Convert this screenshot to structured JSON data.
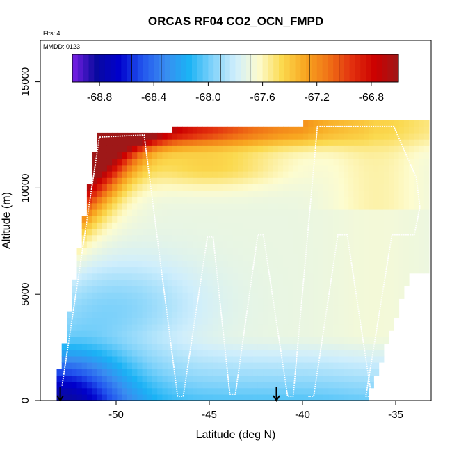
{
  "chart_data": {
    "type": "heatmap",
    "title": "ORCAS RF04 CO2_OCN_FMPD",
    "xlabel": "Latitude (deg N)",
    "ylabel": "Altitude (m)",
    "flights_note": "Flts: 4",
    "date_note": "MMDD: 0123",
    "xlim": [
      -54.5,
      -33
    ],
    "ylim": [
      0,
      17000
    ],
    "x_ticks": [
      -50,
      -45,
      -40,
      -35
    ],
    "y_ticks": [
      0,
      5000,
      10000,
      15000
    ],
    "colorbar": {
      "range": [
        -69.0,
        -66.6
      ],
      "ticks": [
        -68.8,
        -68.4,
        -68.0,
        -67.6,
        -67.2,
        -66.8
      ],
      "colors": [
        "#7a1fe6",
        "#0a0a9e",
        "#0000cc",
        "#2255ee",
        "#3a8cf0",
        "#1ab2f5",
        "#7fd2fa",
        "#cfeefc",
        "#fdfccf",
        "#fbd94e",
        "#f8a620",
        "#f07216",
        "#e2300e",
        "#cc0000",
        "#9e1818"
      ]
    },
    "arrows_at_lat": [
      -53,
      -41.4
    ],
    "flight_track": [
      {
        "lat": -52.9,
        "alt": 700
      },
      {
        "lat": -50.9,
        "alt": 12400
      },
      {
        "lat": -48.5,
        "alt": 12500
      },
      {
        "lat": -46.7,
        "alt": 200
      },
      {
        "lat": -46.4,
        "alt": 200
      },
      {
        "lat": -45.1,
        "alt": 7700
      },
      {
        "lat": -44.8,
        "alt": 7700
      },
      {
        "lat": -43.9,
        "alt": 300
      },
      {
        "lat": -43.6,
        "alt": 300
      },
      {
        "lat": -42.4,
        "alt": 7800
      },
      {
        "lat": -42.1,
        "alt": 7800
      },
      {
        "lat": -40.8,
        "alt": 200
      },
      {
        "lat": -40.5,
        "alt": 200
      },
      {
        "lat": -39.2,
        "alt": 12900
      },
      {
        "lat": -35.1,
        "alt": 12900
      },
      {
        "lat": -33.9,
        "alt": 10500
      },
      {
        "lat": -33.7,
        "alt": 9100
      },
      {
        "lat": -34.0,
        "alt": 7800
      },
      {
        "lat": -35.2,
        "alt": 7800
      },
      {
        "lat": -36.6,
        "alt": 200
      },
      {
        "lat": -36.3,
        "alt": 200
      },
      {
        "lat": -37.6,
        "alt": 7800
      },
      {
        "lat": -38.1,
        "alt": 7800
      },
      {
        "lat": -39.4,
        "alt": 200
      },
      {
        "lat": -39.7,
        "alt": 200
      }
    ]
  }
}
